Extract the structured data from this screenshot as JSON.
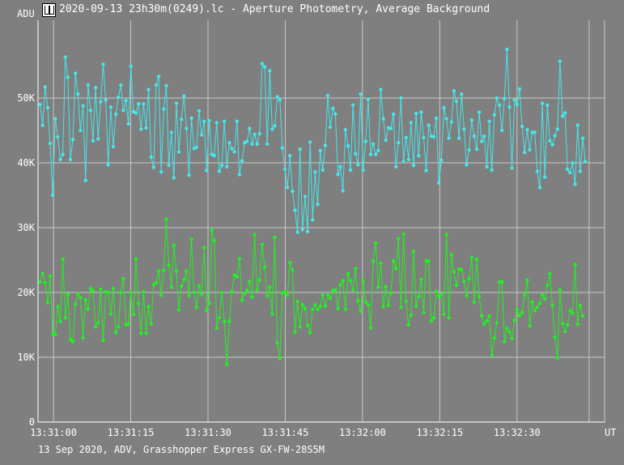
{
  "window": {
    "title": "2020-09-13 23h30m(0249).lc - Aperture Photometry, Average Background",
    "footer": "13 Sep 2020, ADV, Grasshopper Express GX-FW-28S5M"
  },
  "chart_data": {
    "type": "line",
    "title": "2020-09-13 23h30m(0249).lc - Aperture Photometry, Average Background",
    "ylabel": "ADU",
    "xlabel": "UT",
    "ylim": [
      0,
      62000
    ],
    "y_ticks": [
      0,
      10000,
      20000,
      30000,
      40000,
      50000
    ],
    "y_tick_labels": [
      "0",
      "10K",
      "20K",
      "30K",
      "40K",
      "50K"
    ],
    "x_ticks": [
      "13:31:00",
      "13:31:15",
      "13:31:30",
      "13:31:45",
      "13:32:00",
      "13:32:15",
      "13:32:30"
    ],
    "x_tick_seconds": [
      60,
      75,
      90,
      105,
      120,
      135,
      150
    ],
    "xlim": [
      57,
      167
    ],
    "extra_vline_seconds": 164,
    "grid": true,
    "colors": {
      "background": "#7f7f7f",
      "grid": "#c8c8c8",
      "cyan_series": "#46e6ea",
      "green_series": "#22f022"
    },
    "series": [
      {
        "color": "#46e6ea",
        "values": [
          49000,
          45800,
          51700,
          48500,
          43000,
          35000,
          46800,
          44000,
          40500,
          41300,
          56300,
          53200,
          40500,
          43600,
          53800,
          50600,
          45000,
          48800,
          37300,
          52000,
          48100,
          43400,
          51600,
          43700,
          49400,
          55200,
          49700,
          39700,
          48600,
          42500,
          47500,
          50100,
          52000,
          48100,
          49600,
          46000,
          54900,
          47900,
          47700,
          49100,
          45200,
          49100,
          45400,
          51300,
          40900,
          39300,
          52000,
          53300,
          38600,
          48300,
          51900,
          39600,
          44700,
          37700,
          49200,
          41700,
          46700,
          50300,
          45300,
          38100,
          46900,
          42200,
          42400,
          48000,
          44300,
          46400,
          38800,
          46500,
          41300,
          41100,
          46200,
          38700,
          39600,
          46400,
          39400,
          43100,
          42200,
          41700,
          46400,
          38200,
          40300,
          43100,
          43300,
          45300,
          42900,
          44400,
          42900,
          44500,
          55300,
          54800,
          42900,
          54200,
          45200,
          45700,
          50200,
          49700,
          42300,
          39000,
          36200,
          41100,
          35600,
          32700,
          29300,
          42100,
          29700,
          34800,
          29400,
          43200,
          31200,
          38600,
          33600,
          41900,
          38900,
          42700,
          50400,
          45500,
          48400,
          47500,
          38200,
          39400,
          35700,
          45100,
          42600,
          38900,
          48900,
          41400,
          39700,
          50600,
          38900,
          43300,
          49800,
          41300,
          42900,
          41300,
          41900,
          51300,
          46800,
          43500,
          45400,
          45300,
          47500,
          39400,
          43100,
          50000,
          40200,
          43900,
          40500,
          46200,
          39600,
          47600,
          41100,
          47800,
          43900,
          38800,
          45800,
          44100,
          44000,
          46900,
          36900,
          40400,
          48500,
          46800,
          43800,
          46300,
          51100,
          49500,
          43800,
          50600,
          45200,
          39700,
          42000,
          46600,
          44100,
          42100,
          47800,
          43300,
          44100,
          39400,
          46400,
          38900,
          47400,
          50000,
          48900,
          45000,
          49900,
          57500,
          48600,
          39200,
          49700,
          49000,
          51400,
          45600,
          41600,
          45100,
          42000,
          44700,
          44700,
          38700,
          36200,
          49200,
          37800,
          48900,
          43400,
          42800,
          44200,
          45200,
          55700,
          47200,
          47700,
          39000,
          38500,
          40000,
          36700,
          45800,
          38700,
          43800,
          40200
        ],
        "x_start_seconds": 57.4,
        "x_step_seconds": 0.49
      },
      {
        "color": "#22f022",
        "values": [
          21600,
          22900,
          21500,
          18400,
          22500,
          13600,
          13500,
          17800,
          15500,
          25100,
          16100,
          19700,
          12700,
          12400,
          18200,
          19800,
          19200,
          13000,
          18900,
          17400,
          20600,
          20300,
          14700,
          15300,
          20500,
          12600,
          20100,
          20000,
          16700,
          20600,
          13800,
          14700,
          20000,
          22100,
          15000,
          15200,
          20000,
          16600,
          25200,
          18300,
          13700,
          20100,
          13700,
          17800,
          15200,
          21200,
          21500,
          23300,
          19600,
          23400,
          31300,
          24200,
          20800,
          27300,
          23300,
          17300,
          21000,
          22000,
          23300,
          19500,
          28200,
          20000,
          17700,
          21000,
          19700,
          26900,
          17200,
          18300,
          29600,
          28000,
          14500,
          16100,
          20000,
          15500,
          8900,
          15600,
          20100,
          22700,
          22400,
          25200,
          18800,
          19800,
          20300,
          21700,
          19300,
          28900,
          20400,
          21900,
          27400,
          23900,
          19500,
          20800,
          16700,
          28500,
          12200,
          9800,
          19900,
          20100,
          19600,
          24600,
          23500,
          13900,
          18600,
          14700,
          18100,
          17500,
          14900,
          13800,
          17400,
          18100,
          17400,
          17800,
          19600,
          17900,
          19600,
          19100,
          20300,
          20400,
          17500,
          21200,
          21800,
          17400,
          22900,
          21800,
          20400,
          23700,
          18700,
          17100,
          21800,
          18500,
          18100,
          14500,
          24800,
          27600,
          20800,
          24500,
          17800,
          20900,
          18000,
          19900,
          24900,
          23700,
          28300,
          17700,
          29000,
          18600,
          15000,
          16500,
          26300,
          17900,
          19400,
          22000,
          16900,
          24900,
          24800,
          15600,
          16100,
          20200,
          19400,
          19700,
          16600,
          28900,
          16100,
          25800,
          23200,
          21100,
          23600,
          23500,
          21700,
          19500,
          22100,
          25400,
          18500,
          25100,
          19400,
          16400,
          15100,
          15600,
          16400,
          10300,
          13000,
          15300,
          21600,
          21600,
          12400,
          14500,
          13900,
          12900,
          15700,
          17400,
          16400,
          16900,
          19600,
          21900,
          14800,
          18500,
          17200,
          17700,
          18300,
          19600,
          19000,
          21100,
          22900,
          18000,
          13100,
          9900,
          20400,
          15200,
          14000,
          15000,
          17200,
          16800,
          24300,
          15100,
          18000,
          16400
        ],
        "x_start_seconds": 57.4,
        "x_step_seconds": 0.49
      }
    ]
  }
}
